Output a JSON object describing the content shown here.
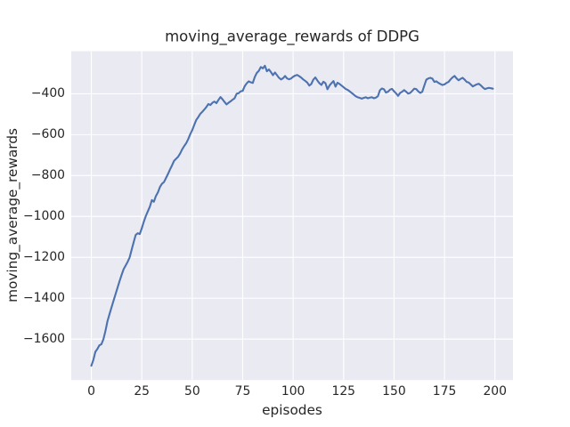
{
  "figure": {
    "kind": "matplotlib-seaborn-figure"
  },
  "colors": {
    "figure_background": "#ffffff",
    "axes_background": "#eaeaf2",
    "grid": "#ffffff",
    "text": "#262626",
    "line": "#4c72b0"
  },
  "chart_data": {
    "type": "line",
    "title": "moving_average_rewards of DDPG",
    "xlabel": "episodes",
    "ylabel": "moving_average_rewards",
    "grid": true,
    "legend": false,
    "xlim": [
      -9.95,
      208.95
    ],
    "ylim": [
      -1800,
      -192
    ],
    "x_ticks": [
      0,
      25,
      50,
      75,
      100,
      125,
      150,
      175,
      200
    ],
    "x_tick_labels": [
      "0",
      "25",
      "50",
      "75",
      "100",
      "125",
      "150",
      "175",
      "200"
    ],
    "y_ticks": [
      -400,
      -600,
      -800,
      -1000,
      -1200,
      -1400,
      -1600
    ],
    "y_tick_labels": [
      "−400",
      "−600",
      "−800",
      "−1000",
      "−1200",
      "−1400",
      "−1600"
    ],
    "series": [
      {
        "name": "DDPG moving average rewards",
        "color": "#4c72b0",
        "x_start": 0,
        "x_step": 1,
        "y": [
          -1730,
          -1702,
          -1662,
          -1648,
          -1630,
          -1625,
          -1600,
          -1560,
          -1512,
          -1478,
          -1445,
          -1412,
          -1380,
          -1348,
          -1316,
          -1286,
          -1258,
          -1240,
          -1222,
          -1200,
          -1162,
          -1125,
          -1090,
          -1082,
          -1086,
          -1058,
          -1026,
          -998,
          -975,
          -952,
          -920,
          -928,
          -900,
          -882,
          -856,
          -840,
          -832,
          -812,
          -792,
          -770,
          -750,
          -728,
          -718,
          -708,
          -692,
          -672,
          -656,
          -642,
          -622,
          -598,
          -578,
          -552,
          -528,
          -514,
          -498,
          -488,
          -477,
          -465,
          -450,
          -455,
          -444,
          -438,
          -446,
          -430,
          -416,
          -427,
          -440,
          -452,
          -444,
          -437,
          -429,
          -422,
          -400,
          -397,
          -388,
          -386,
          -363,
          -349,
          -339,
          -344,
          -347,
          -318,
          -298,
          -288,
          -269,
          -276,
          -263,
          -290,
          -281,
          -294,
          -309,
          -296,
          -309,
          -322,
          -330,
          -324,
          -313,
          -325,
          -329,
          -325,
          -317,
          -311,
          -308,
          -314,
          -321,
          -330,
          -337,
          -345,
          -360,
          -352,
          -331,
          -320,
          -335,
          -348,
          -357,
          -341,
          -348,
          -378,
          -360,
          -348,
          -338,
          -365,
          -346,
          -352,
          -360,
          -368,
          -376,
          -381,
          -388,
          -396,
          -404,
          -412,
          -417,
          -420,
          -424,
          -420,
          -417,
          -422,
          -419,
          -417,
          -422,
          -419,
          -412,
          -383,
          -374,
          -378,
          -394,
          -390,
          -380,
          -376,
          -388,
          -398,
          -410,
          -396,
          -390,
          -382,
          -390,
          -399,
          -396,
          -386,
          -375,
          -377,
          -388,
          -396,
          -390,
          -360,
          -331,
          -325,
          -322,
          -326,
          -342,
          -339,
          -347,
          -352,
          -357,
          -354,
          -347,
          -342,
          -330,
          -320,
          -313,
          -325,
          -334,
          -327,
          -322,
          -331,
          -342,
          -345,
          -354,
          -364,
          -359,
          -354,
          -351,
          -359,
          -369,
          -377,
          -374,
          -371,
          -373,
          -375
        ]
      }
    ]
  }
}
